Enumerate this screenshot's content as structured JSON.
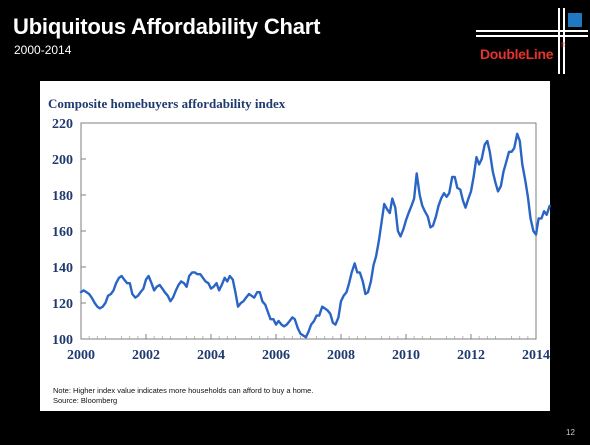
{
  "header": {
    "title": "Ubiquitous Affordability Chart",
    "subtitle": "2000-2014",
    "logo_text": "DoubleLine",
    "logo_mark": "®"
  },
  "chart_data": {
    "type": "line",
    "title": "Composite homebuyers affordability index",
    "xlabel": "",
    "ylabel": "",
    "xlim": [
      2000,
      2014
    ],
    "ylim": [
      100,
      220
    ],
    "x_ticks": [
      "2000",
      "2002",
      "2004",
      "2006",
      "2008",
      "2010",
      "2012",
      "2014"
    ],
    "y_ticks": [
      "100",
      "120",
      "140",
      "160",
      "180",
      "200",
      "220"
    ],
    "grid": false,
    "series": [
      {
        "color": "#2a64c5",
        "points": [
          [
            2000.0,
            126
          ],
          [
            2000.08,
            127
          ],
          [
            2000.17,
            126
          ],
          [
            2000.25,
            125
          ],
          [
            2000.33,
            123
          ],
          [
            2000.42,
            120
          ],
          [
            2000.5,
            118
          ],
          [
            2000.58,
            117
          ],
          [
            2000.67,
            118
          ],
          [
            2000.75,
            120
          ],
          [
            2000.83,
            124
          ],
          [
            2000.92,
            125
          ],
          [
            2001.0,
            127
          ],
          [
            2001.08,
            131
          ],
          [
            2001.17,
            134
          ],
          [
            2001.25,
            135
          ],
          [
            2001.33,
            133
          ],
          [
            2001.42,
            131
          ],
          [
            2001.5,
            131
          ],
          [
            2001.58,
            125
          ],
          [
            2001.67,
            123
          ],
          [
            2001.75,
            124
          ],
          [
            2001.83,
            126
          ],
          [
            2001.92,
            128
          ],
          [
            2002.0,
            133
          ],
          [
            2002.08,
            135
          ],
          [
            2002.17,
            131
          ],
          [
            2002.25,
            127
          ],
          [
            2002.33,
            129
          ],
          [
            2002.42,
            130
          ],
          [
            2002.5,
            128
          ],
          [
            2002.58,
            126
          ],
          [
            2002.67,
            124
          ],
          [
            2002.75,
            121
          ],
          [
            2002.83,
            123
          ],
          [
            2002.92,
            127
          ],
          [
            2003.0,
            130
          ],
          [
            2003.08,
            132
          ],
          [
            2003.17,
            131
          ],
          [
            2003.25,
            129
          ],
          [
            2003.33,
            135
          ],
          [
            2003.42,
            137
          ],
          [
            2003.5,
            137
          ],
          [
            2003.58,
            136
          ],
          [
            2003.67,
            136
          ],
          [
            2003.75,
            134
          ],
          [
            2003.83,
            132
          ],
          [
            2003.92,
            131
          ],
          [
            2004.0,
            128
          ],
          [
            2004.08,
            129
          ],
          [
            2004.17,
            131
          ],
          [
            2004.25,
            127
          ],
          [
            2004.33,
            130
          ],
          [
            2004.42,
            134
          ],
          [
            2004.5,
            132
          ],
          [
            2004.58,
            135
          ],
          [
            2004.67,
            133
          ],
          [
            2004.75,
            126
          ],
          [
            2004.83,
            118
          ],
          [
            2004.92,
            120
          ],
          [
            2005.0,
            121
          ],
          [
            2005.08,
            123
          ],
          [
            2005.17,
            125
          ],
          [
            2005.25,
            124
          ],
          [
            2005.33,
            123
          ],
          [
            2005.42,
            126
          ],
          [
            2005.5,
            126
          ],
          [
            2005.58,
            121
          ],
          [
            2005.67,
            119
          ],
          [
            2005.75,
            115
          ],
          [
            2005.83,
            111
          ],
          [
            2005.92,
            111
          ],
          [
            2006.0,
            108
          ],
          [
            2006.08,
            110
          ],
          [
            2006.17,
            108
          ],
          [
            2006.25,
            107
          ],
          [
            2006.33,
            108
          ],
          [
            2006.42,
            110
          ],
          [
            2006.5,
            112
          ],
          [
            2006.58,
            111
          ],
          [
            2006.67,
            106
          ],
          [
            2006.75,
            103
          ],
          [
            2006.83,
            102
          ],
          [
            2006.92,
            101
          ],
          [
            2007.0,
            104
          ],
          [
            2007.08,
            108
          ],
          [
            2007.17,
            110
          ],
          [
            2007.25,
            113
          ],
          [
            2007.33,
            113
          ],
          [
            2007.42,
            118
          ],
          [
            2007.5,
            117
          ],
          [
            2007.58,
            116
          ],
          [
            2007.67,
            114
          ],
          [
            2007.75,
            109
          ],
          [
            2007.83,
            108
          ],
          [
            2007.92,
            112
          ],
          [
            2008.0,
            121
          ],
          [
            2008.08,
            124
          ],
          [
            2008.17,
            126
          ],
          [
            2008.25,
            131
          ],
          [
            2008.33,
            137
          ],
          [
            2008.42,
            142
          ],
          [
            2008.5,
            137
          ],
          [
            2008.58,
            137
          ],
          [
            2008.67,
            132
          ],
          [
            2008.75,
            125
          ],
          [
            2008.83,
            126
          ],
          [
            2008.92,
            132
          ],
          [
            2009.0,
            141
          ],
          [
            2009.08,
            146
          ],
          [
            2009.17,
            155
          ],
          [
            2009.25,
            165
          ],
          [
            2009.33,
            175
          ],
          [
            2009.42,
            172
          ],
          [
            2009.5,
            170
          ],
          [
            2009.58,
            178
          ],
          [
            2009.67,
            173
          ],
          [
            2009.75,
            160
          ],
          [
            2009.83,
            157
          ],
          [
            2009.92,
            161
          ],
          [
            2010.0,
            166
          ],
          [
            2010.08,
            170
          ],
          [
            2010.17,
            174
          ],
          [
            2010.25,
            178
          ],
          [
            2010.33,
            192
          ],
          [
            2010.42,
            180
          ],
          [
            2010.5,
            174
          ],
          [
            2010.58,
            171
          ],
          [
            2010.67,
            168
          ],
          [
            2010.75,
            162
          ],
          [
            2010.83,
            163
          ],
          [
            2010.92,
            168
          ],
          [
            2011.0,
            174
          ],
          [
            2011.08,
            178
          ],
          [
            2011.17,
            181
          ],
          [
            2011.25,
            179
          ],
          [
            2011.33,
            181
          ],
          [
            2011.42,
            190
          ],
          [
            2011.5,
            190
          ],
          [
            2011.58,
            184
          ],
          [
            2011.67,
            183
          ],
          [
            2011.75,
            177
          ],
          [
            2011.83,
            173
          ],
          [
            2011.92,
            178
          ],
          [
            2012.0,
            182
          ],
          [
            2012.08,
            190
          ],
          [
            2012.17,
            201
          ],
          [
            2012.25,
            197
          ],
          [
            2012.33,
            200
          ],
          [
            2012.42,
            208
          ],
          [
            2012.5,
            210
          ],
          [
            2012.58,
            204
          ],
          [
            2012.67,
            193
          ],
          [
            2012.75,
            187
          ],
          [
            2012.83,
            182
          ],
          [
            2012.92,
            185
          ],
          [
            2013.0,
            193
          ],
          [
            2013.08,
            198
          ],
          [
            2013.17,
            204
          ],
          [
            2013.25,
            204
          ],
          [
            2013.33,
            206
          ],
          [
            2013.42,
            214
          ],
          [
            2013.5,
            210
          ],
          [
            2013.58,
            197
          ],
          [
            2013.67,
            188
          ],
          [
            2013.75,
            179
          ],
          [
            2013.83,
            167
          ],
          [
            2013.92,
            160
          ],
          [
            2014.0,
            158
          ],
          [
            2014.08,
            167
          ],
          [
            2014.17,
            167
          ],
          [
            2014.25,
            171
          ],
          [
            2014.33,
            169
          ],
          [
            2014.42,
            174
          ]
        ]
      }
    ]
  },
  "notes": {
    "note": "Note: Higher index value indicates more households can afford to buy a home.",
    "source": "Source: Bloomberg"
  },
  "footer": {
    "page_number": "12"
  }
}
